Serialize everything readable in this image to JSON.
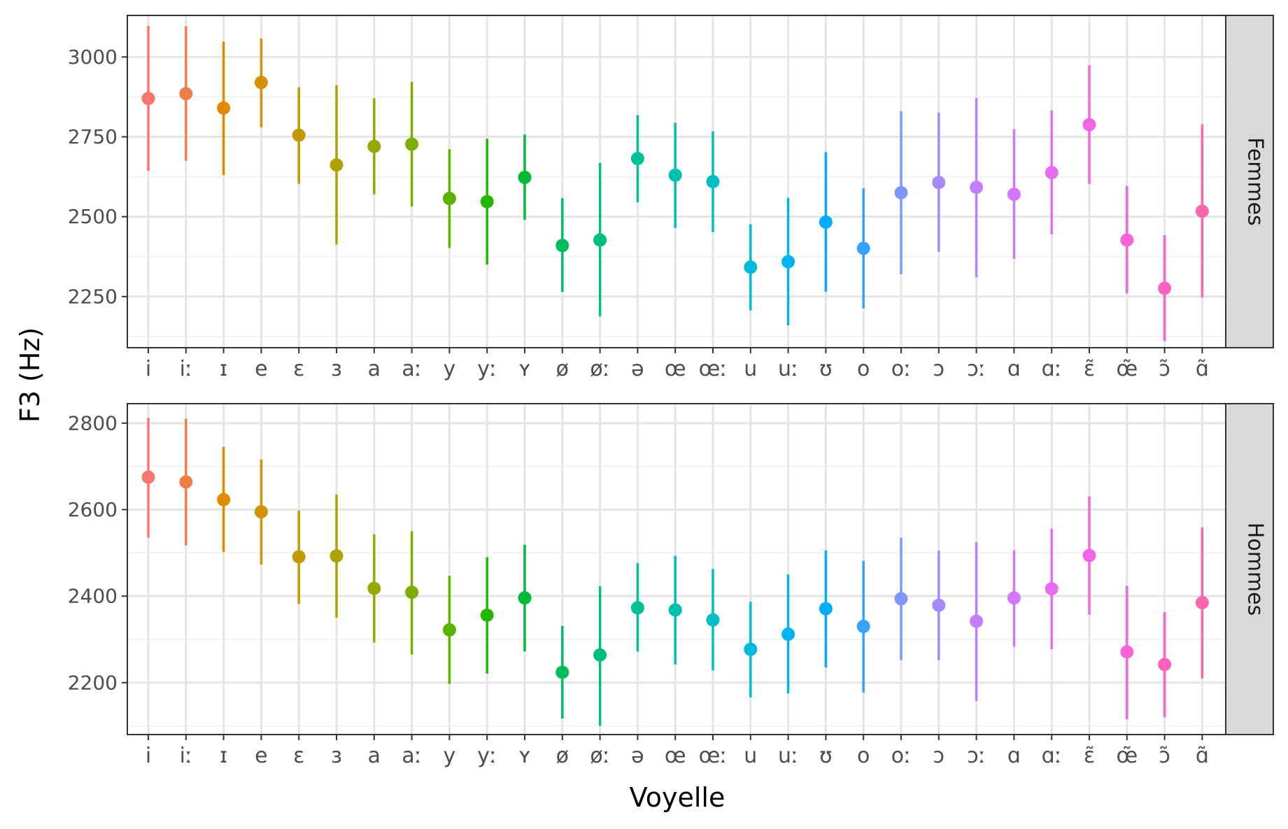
{
  "chart_data": {
    "type": "pointrange",
    "xlabel": "Voyelle",
    "ylabel": "F3 (Hz)",
    "categories": [
      "i",
      "iː",
      "ɪ",
      "e",
      "ɛ",
      "ɜ",
      "a",
      "aː",
      "y",
      "yː",
      "ʏ",
      "ø",
      "øː",
      "ə",
      "œ",
      "œː",
      "u",
      "uː",
      "ʊ",
      "o",
      "oː",
      "ɔ",
      "ɔː",
      "ɑ",
      "ɑː",
      "ɛ̃",
      "œ̃",
      "ɔ̃",
      "ɑ̃"
    ],
    "colors": [
      "#F8766D",
      "#EF7F49",
      "#E38900",
      "#D49200",
      "#C29A00",
      "#AEA200",
      "#97A900",
      "#7CAE00",
      "#5AB300",
      "#22B700",
      "#00BA38",
      "#00BD5C",
      "#00BF7A",
      "#00C095",
      "#00C0AF",
      "#00BEC6",
      "#00BADB",
      "#00B4EF",
      "#00ACFC",
      "#35A2FF",
      "#7F96FF",
      "#A58AFF",
      "#C17FFF",
      "#D675FE",
      "#E76BF3",
      "#F265E7",
      "#FA62D5",
      "#FF61C1",
      "#FF65AD"
    ],
    "grid": true,
    "legend": "none",
    "facets": [
      {
        "strip_label": "Femmes",
        "ylim": [
          2090,
          3130
        ],
        "yticks": [
          2250,
          2500,
          2750,
          3000
        ],
        "mean": [
          2870,
          2885,
          2840,
          2920,
          2755,
          2662,
          2720,
          2727,
          2557,
          2547,
          2623,
          2410,
          2427,
          2682,
          2630,
          2610,
          2342,
          2359,
          2483,
          2401,
          2575,
          2607,
          2592,
          2570,
          2638,
          2788,
          2427,
          2276,
          2517
        ],
        "low": [
          2643,
          2675,
          2630,
          2780,
          2603,
          2413,
          2570,
          2532,
          2402,
          2350,
          2490,
          2265,
          2188,
          2545,
          2465,
          2452,
          2207,
          2160,
          2265,
          2213,
          2320,
          2390,
          2310,
          2368,
          2445,
          2602,
          2260,
          2111,
          2247
        ],
        "high": [
          3097,
          3096,
          3048,
          3058,
          2905,
          2912,
          2871,
          2922,
          2711,
          2744,
          2757,
          2558,
          2668,
          2818,
          2794,
          2767,
          2476,
          2559,
          2702,
          2589,
          2830,
          2826,
          2872,
          2774,
          2833,
          2974,
          2596,
          2442,
          2789
        ]
      },
      {
        "strip_label": "Hommes",
        "ylim": [
          2080,
          2845
        ],
        "yticks": [
          2200,
          2400,
          2600,
          2800
        ],
        "mean": [
          2675,
          2664,
          2623,
          2595,
          2491,
          2493,
          2418,
          2409,
          2322,
          2356,
          2396,
          2224,
          2264,
          2373,
          2368,
          2345,
          2277,
          2312,
          2371,
          2330,
          2394,
          2379,
          2342,
          2396,
          2417,
          2494,
          2271,
          2242,
          2385
        ],
        "low": [
          2535,
          2517,
          2502,
          2473,
          2382,
          2350,
          2293,
          2265,
          2197,
          2221,
          2272,
          2117,
          2100,
          2272,
          2242,
          2228,
          2166,
          2175,
          2235,
          2177,
          2252,
          2252,
          2157,
          2283,
          2277,
          2357,
          2115,
          2120,
          2210
        ],
        "high": [
          2812,
          2810,
          2745,
          2716,
          2598,
          2635,
          2543,
          2550,
          2447,
          2490,
          2519,
          2331,
          2423,
          2476,
          2493,
          2463,
          2387,
          2450,
          2506,
          2482,
          2535,
          2505,
          2525,
          2506,
          2556,
          2631,
          2424,
          2363,
          2559
        ]
      }
    ]
  }
}
